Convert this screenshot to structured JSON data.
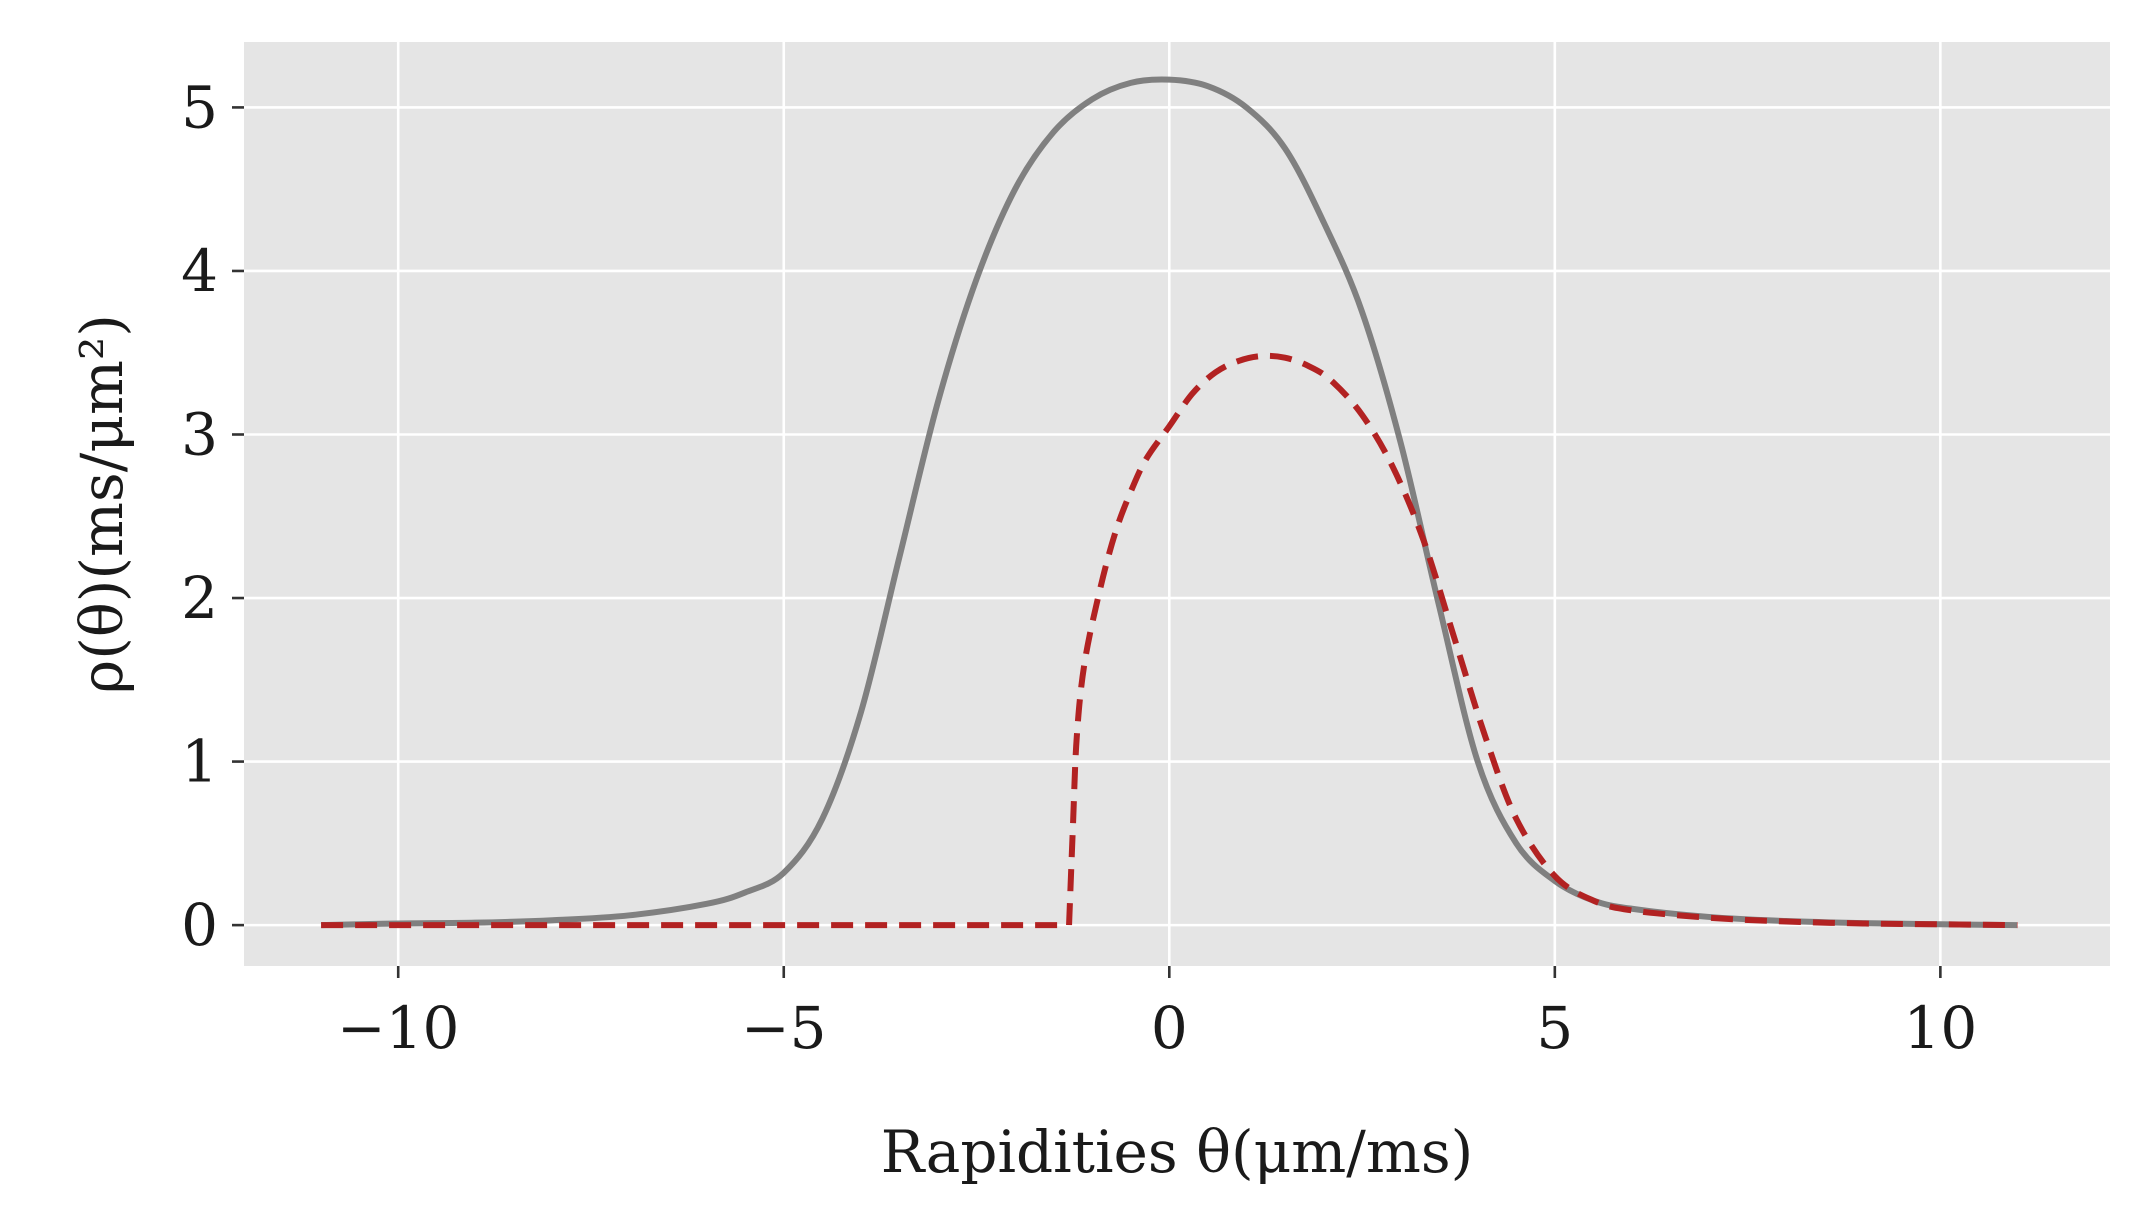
{
  "chart_data": {
    "type": "line",
    "xlabel": "Rapidities θ(μm/ms)",
    "ylabel": "ρ(θ)(ms/μm²)",
    "xlim": [
      -12,
      12.2
    ],
    "ylim": [
      -0.25,
      5.4
    ],
    "x_ticks": [
      -10,
      -5,
      0,
      5,
      10
    ],
    "x_tick_labels": [
      "−10",
      "−5",
      "0",
      "5",
      "10"
    ],
    "y_ticks": [
      0,
      1,
      2,
      3,
      4,
      5
    ],
    "y_tick_labels": [
      "0",
      "1",
      "2",
      "3",
      "4",
      "5"
    ],
    "grid": true,
    "background": "#e5e5e5",
    "series": [
      {
        "style": "solid",
        "color": "#808080",
        "x": [
          -11,
          -10,
          -9,
          -8,
          -7,
          -6,
          -5.5,
          -5,
          -4.5,
          -4,
          -3.5,
          -3,
          -2.5,
          -2,
          -1.5,
          -1,
          -0.5,
          0,
          0.5,
          1,
          1.5,
          2,
          2.5,
          3,
          3.5,
          4,
          4.5,
          5,
          5.5,
          6,
          7,
          8,
          9,
          10,
          11
        ],
        "y": [
          0.0,
          0.01,
          0.015,
          0.03,
          0.06,
          0.13,
          0.2,
          0.32,
          0.65,
          1.3,
          2.25,
          3.2,
          3.95,
          4.5,
          4.85,
          5.05,
          5.15,
          5.17,
          5.13,
          5.0,
          4.75,
          4.3,
          3.75,
          2.95,
          1.95,
          1.0,
          0.5,
          0.27,
          0.15,
          0.1,
          0.05,
          0.025,
          0.012,
          0.005,
          0.0
        ]
      },
      {
        "style": "dashed",
        "color": "#b22222",
        "x": [
          -11,
          -6,
          -1.3,
          -1.25,
          -1.2,
          -1.1,
          -0.9,
          -0.7,
          -0.5,
          -0.3,
          0,
          0.3,
          0.6,
          0.9,
          1.2,
          1.5,
          1.8,
          2.1,
          2.5,
          2.9,
          3.3,
          3.7,
          4.1,
          4.5,
          5,
          5.5,
          6,
          7,
          8,
          9,
          10,
          11
        ],
        "y": [
          0.0,
          0.0,
          0.0,
          0.6,
          1.15,
          1.6,
          2.05,
          2.4,
          2.65,
          2.85,
          3.05,
          3.25,
          3.38,
          3.45,
          3.48,
          3.47,
          3.42,
          3.33,
          3.12,
          2.8,
          2.35,
          1.75,
          1.15,
          0.65,
          0.3,
          0.15,
          0.09,
          0.045,
          0.022,
          0.01,
          0.005,
          0.0
        ]
      }
    ]
  }
}
